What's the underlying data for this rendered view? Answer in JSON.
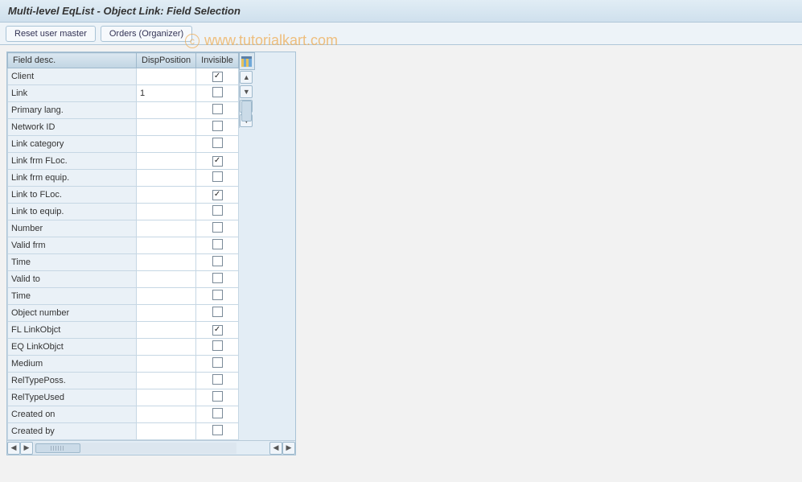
{
  "title": "Multi-level EqList - Object Link: Field Selection",
  "toolbar": {
    "reset_label": "Reset user master",
    "orders_label": "Orders (Organizer)"
  },
  "watermark": {
    "text": "www.tutorialkart.com"
  },
  "grid": {
    "columns": {
      "field_desc": "Field desc.",
      "disp_position": "DispPosition",
      "invisible": "Invisible"
    },
    "rows": [
      {
        "desc": "Client",
        "pos": "",
        "invisible": true
      },
      {
        "desc": "Link",
        "pos": "1",
        "invisible": false
      },
      {
        "desc": "Primary lang.",
        "pos": "",
        "invisible": false
      },
      {
        "desc": "Network ID",
        "pos": "",
        "invisible": false
      },
      {
        "desc": "Link category",
        "pos": "",
        "invisible": false
      },
      {
        "desc": "Link frm FLoc.",
        "pos": "",
        "invisible": true
      },
      {
        "desc": "Link frm equip.",
        "pos": "",
        "invisible": false
      },
      {
        "desc": "Link to FLoc.",
        "pos": "",
        "invisible": true
      },
      {
        "desc": "Link to equip.",
        "pos": "",
        "invisible": false
      },
      {
        "desc": "Number",
        "pos": "",
        "invisible": false
      },
      {
        "desc": "Valid frm",
        "pos": "",
        "invisible": false
      },
      {
        "desc": "Time",
        "pos": "",
        "invisible": false
      },
      {
        "desc": "Valid to",
        "pos": "",
        "invisible": false
      },
      {
        "desc": "Time",
        "pos": "",
        "invisible": false
      },
      {
        "desc": "Object number",
        "pos": "",
        "invisible": false
      },
      {
        "desc": "FL LinkObjct",
        "pos": "",
        "invisible": true
      },
      {
        "desc": "EQ LinkObjct",
        "pos": "",
        "invisible": false
      },
      {
        "desc": "Medium",
        "pos": "",
        "invisible": false
      },
      {
        "desc": "RelTypePoss.",
        "pos": "",
        "invisible": false
      },
      {
        "desc": "RelTypeUsed",
        "pos": "",
        "invisible": false
      },
      {
        "desc": "Created on",
        "pos": "",
        "invisible": false
      },
      {
        "desc": "Created by",
        "pos": "",
        "invisible": false
      }
    ]
  },
  "colors": {
    "header_bg_top": "#e1edf5",
    "header_bg_bottom": "#cfe0ed",
    "grid_header_bg": "#cadce9",
    "cell_desc_bg": "#eaf1f7",
    "border": "#a9c3d6",
    "watermark": "#efa94a"
  }
}
